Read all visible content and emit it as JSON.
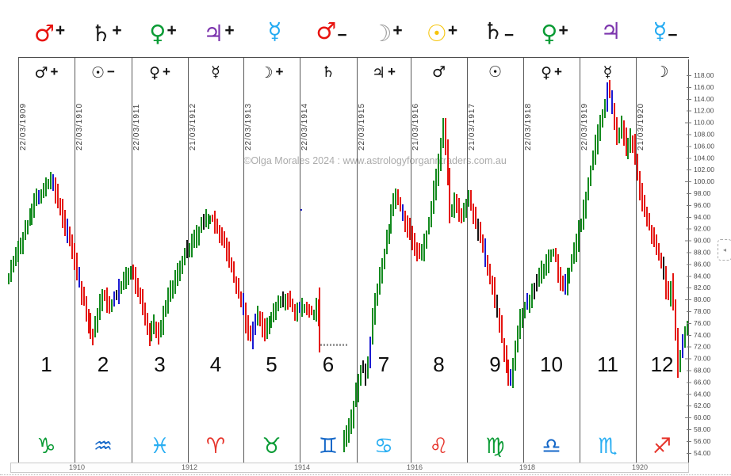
{
  "watermark": "©Olga Morales 2024 : www.astrologyforganntraders.com.au",
  "top_planets": [
    {
      "name": "mars",
      "glyph": "♂",
      "sign": "+",
      "color": "#e8130f"
    },
    {
      "name": "saturn",
      "glyph": "♄",
      "sign": "+",
      "color": "#1a1a1a"
    },
    {
      "name": "venus",
      "glyph": "♀",
      "sign": "+",
      "color": "#0a9b35"
    },
    {
      "name": "jupiter",
      "glyph": "♃",
      "sign": "+",
      "color": "#7c35ad"
    },
    {
      "name": "mercury",
      "glyph": "☿",
      "sign": "",
      "color": "#22aaf2"
    },
    {
      "name": "mars",
      "glyph": "♂",
      "sign": "−",
      "color": "#e8130f"
    },
    {
      "name": "moon",
      "glyph": "☽",
      "sign": "+",
      "color": "#9a9a9a"
    },
    {
      "name": "sun",
      "glyph": "☉",
      "sign": "+",
      "color": "#f6c40a"
    },
    {
      "name": "saturn",
      "glyph": "♄",
      "sign": "−",
      "color": "#1a1a1a"
    },
    {
      "name": "venus",
      "glyph": "♀",
      "sign": "+",
      "color": "#0a9b35"
    },
    {
      "name": "jupiter",
      "glyph": "♃",
      "sign": "",
      "color": "#7c35ad"
    },
    {
      "name": "mercury",
      "glyph": "☿",
      "sign": "−",
      "color": "#22aaf2"
    }
  ],
  "columns": [
    {
      "number": "1",
      "planet": {
        "name": "mars",
        "glyph": "♂",
        "sign": "+"
      },
      "date": "22/03/1909",
      "zodiac": {
        "name": "capricorn",
        "glyph": "♑",
        "color": "#0a9b35"
      }
    },
    {
      "number": "2",
      "planet": {
        "name": "sun",
        "glyph": "☉",
        "sign": "−"
      },
      "date": "22/03/1910",
      "zodiac": {
        "name": "aquarius",
        "glyph": "♒",
        "color": "#1467c8"
      }
    },
    {
      "number": "3",
      "planet": {
        "name": "venus",
        "glyph": "♀",
        "sign": "+"
      },
      "date": "22/03/1911",
      "zodiac": {
        "name": "pisces",
        "glyph": "♓",
        "color": "#29aef2"
      }
    },
    {
      "number": "4",
      "planet": {
        "name": "mercury",
        "glyph": "☿",
        "sign": ""
      },
      "date": "21/03/1912",
      "zodiac": {
        "name": "aries",
        "glyph": "♈",
        "color": "#e6332a"
      }
    },
    {
      "number": "5",
      "planet": {
        "name": "moon",
        "glyph": "☽",
        "sign": "+"
      },
      "date": "22/03/1913",
      "zodiac": {
        "name": "taurus",
        "glyph": "♉",
        "color": "#0a9b35"
      }
    },
    {
      "number": "6",
      "planet": {
        "name": "saturn",
        "glyph": "♄",
        "sign": ""
      },
      "date": "22/03/1914",
      "zodiac": {
        "name": "gemini",
        "glyph": "♊",
        "color": "#1467c8"
      }
    },
    {
      "number": "7",
      "planet": {
        "name": "jupiter",
        "glyph": "♃",
        "sign": "+"
      },
      "date": "22/03/1915",
      "zodiac": {
        "name": "cancer",
        "glyph": "♋",
        "color": "#29aef2"
      }
    },
    {
      "number": "8",
      "planet": {
        "name": "mars",
        "glyph": "♂",
        "sign": ""
      },
      "date": "21/03/1916",
      "zodiac": {
        "name": "leo",
        "glyph": "♌",
        "color": "#e6332a"
      }
    },
    {
      "number": "9",
      "planet": {
        "name": "sun",
        "glyph": "☉",
        "sign": ""
      },
      "date": "21/03/1917",
      "zodiac": {
        "name": "virgo",
        "glyph": "♍",
        "color": "#0a9b35"
      }
    },
    {
      "number": "10",
      "planet": {
        "name": "venus",
        "glyph": "♀",
        "sign": "+"
      },
      "date": "22/03/1918",
      "zodiac": {
        "name": "libra",
        "glyph": "♎",
        "color": "#1467c8"
      }
    },
    {
      "number": "11",
      "planet": {
        "name": "mercury",
        "glyph": "☿",
        "sign": ""
      },
      "date": "22/03/1919",
      "zodiac": {
        "name": "scorpio",
        "glyph": "♏",
        "color": "#29aef2"
      }
    },
    {
      "number": "12",
      "planet": {
        "name": "moon",
        "glyph": "☽",
        "sign": ""
      },
      "date": "21/03/1920",
      "zodiac": {
        "name": "sagittarius",
        "glyph": "♐",
        "color": "#e6332a"
      }
    }
  ],
  "y_axis": {
    "min": 54,
    "max": 118,
    "step": 2,
    "decimals": 2
  },
  "x_axis": {
    "year_labels": [
      "1910",
      "1912",
      "1914",
      "1916",
      "1918",
      "1920"
    ]
  },
  "chart_data": {
    "type": "candlestick",
    "title": "",
    "xlabel": "",
    "ylabel": "",
    "x_range_years": [
      1908.97,
      1921.05
    ],
    "y_range": [
      54,
      118
    ],
    "grid": "vertical-yearly-columns",
    "bar_colors": {
      "up": "#128a1e",
      "down": "#e41511",
      "alt_blue": "#1a1ad2",
      "alt_black": "#141414"
    },
    "price_path": [
      [
        1908.97,
        83
      ],
      [
        1909.08,
        86
      ],
      [
        1909.2,
        89
      ],
      [
        1909.35,
        93
      ],
      [
        1909.5,
        97
      ],
      [
        1909.65,
        99
      ],
      [
        1909.78,
        100
      ],
      [
        1909.88,
        97
      ],
      [
        1910.0,
        93
      ],
      [
        1910.15,
        88
      ],
      [
        1910.3,
        81
      ],
      [
        1910.5,
        73.5
      ],
      [
        1910.62,
        79
      ],
      [
        1910.7,
        81
      ],
      [
        1910.8,
        78.5
      ],
      [
        1910.95,
        81.5
      ],
      [
        1911.1,
        84
      ],
      [
        1911.2,
        84.5
      ],
      [
        1911.35,
        80
      ],
      [
        1911.5,
        73.5
      ],
      [
        1911.58,
        76
      ],
      [
        1911.68,
        74
      ],
      [
        1911.8,
        79
      ],
      [
        1911.95,
        83
      ],
      [
        1912.1,
        87
      ],
      [
        1912.3,
        90
      ],
      [
        1912.5,
        93.5
      ],
      [
        1912.62,
        94
      ],
      [
        1912.75,
        91
      ],
      [
        1912.9,
        88
      ],
      [
        1913.0,
        84
      ],
      [
        1913.15,
        79
      ],
      [
        1913.3,
        73
      ],
      [
        1913.42,
        77.5
      ],
      [
        1913.55,
        74.5
      ],
      [
        1913.7,
        77.5
      ],
      [
        1913.82,
        80
      ],
      [
        1913.95,
        80
      ],
      [
        1914.1,
        78
      ],
      [
        1914.25,
        79
      ],
      [
        1914.42,
        77.5
      ],
      [
        1914.48,
        79
      ],
      [
        1914.92,
        55
      ],
      [
        1915.0,
        57
      ],
      [
        1915.08,
        59
      ],
      [
        1915.18,
        64
      ],
      [
        1915.28,
        69
      ],
      [
        1915.36,
        67
      ],
      [
        1915.44,
        74
      ],
      [
        1915.52,
        80
      ],
      [
        1915.62,
        85
      ],
      [
        1915.72,
        90
      ],
      [
        1915.82,
        95
      ],
      [
        1915.9,
        98.5
      ],
      [
        1915.98,
        95
      ],
      [
        1916.1,
        92
      ],
      [
        1916.22,
        89
      ],
      [
        1916.32,
        87
      ],
      [
        1916.45,
        92
      ],
      [
        1916.55,
        98
      ],
      [
        1916.65,
        104
      ],
      [
        1916.73,
        110
      ],
      [
        1916.79,
        104
      ],
      [
        1916.86,
        93
      ],
      [
        1916.95,
        97
      ],
      [
        1917.05,
        94
      ],
      [
        1917.18,
        97
      ],
      [
        1917.3,
        93
      ],
      [
        1917.45,
        88
      ],
      [
        1917.6,
        82
      ],
      [
        1917.72,
        76
      ],
      [
        1917.85,
        68
      ],
      [
        1917.92,
        65.5
      ],
      [
        1918.0,
        71
      ],
      [
        1918.1,
        77
      ],
      [
        1918.2,
        79
      ],
      [
        1918.32,
        81
      ],
      [
        1918.45,
        85
      ],
      [
        1918.55,
        86
      ],
      [
        1918.7,
        88.5
      ],
      [
        1918.78,
        84
      ],
      [
        1918.88,
        82
      ],
      [
        1918.96,
        84.5
      ],
      [
        1919.06,
        88
      ],
      [
        1919.15,
        92
      ],
      [
        1919.25,
        96
      ],
      [
        1919.35,
        102
      ],
      [
        1919.48,
        108
      ],
      [
        1919.58,
        112
      ],
      [
        1919.66,
        117
      ],
      [
        1919.74,
        111
      ],
      [
        1919.82,
        107
      ],
      [
        1919.9,
        109.5
      ],
      [
        1919.98,
        105
      ],
      [
        1920.08,
        108
      ],
      [
        1920.2,
        100
      ],
      [
        1920.32,
        94
      ],
      [
        1920.45,
        91
      ],
      [
        1920.55,
        88
      ],
      [
        1920.65,
        84
      ],
      [
        1920.72,
        80
      ],
      [
        1920.78,
        83
      ],
      [
        1920.84,
        76
      ],
      [
        1920.9,
        68
      ],
      [
        1920.97,
        73.5
      ],
      [
        1921.04,
        74.5
      ]
    ],
    "trading_gap_years": [
      1914.5,
      1914.9
    ],
    "closure_drop": {
      "year": 1914.49,
      "from": 82,
      "to": 71
    },
    "stray_dot": {
      "year": 1914.17,
      "price": 95.3
    }
  },
  "side_toggle": {
    "arrow": "◂"
  }
}
